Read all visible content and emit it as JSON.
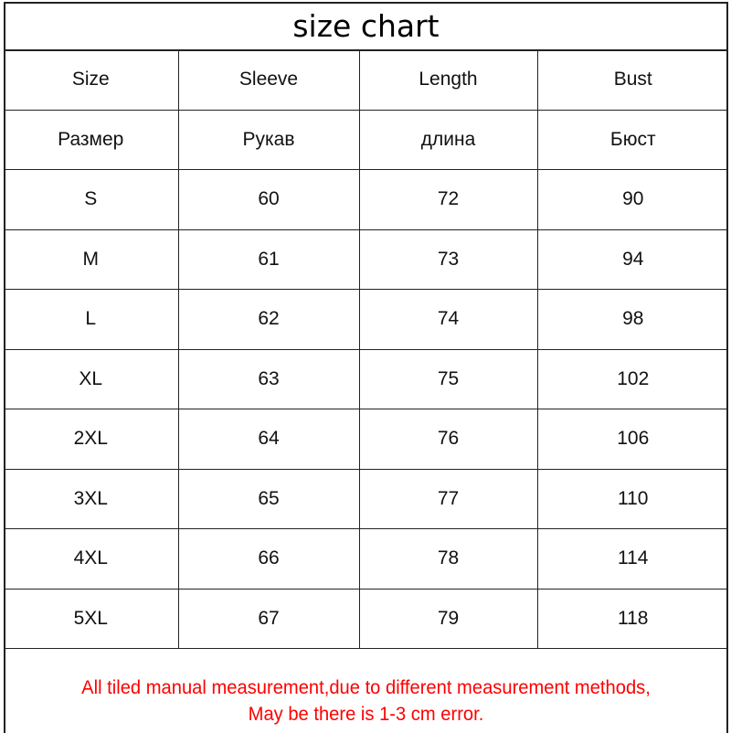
{
  "title": "size chart",
  "header_en": [
    "Size",
    "Sleeve",
    "Length",
    "Bust"
  ],
  "header_ru": [
    "Размер",
    "Рукав",
    "длина",
    "Бюст"
  ],
  "rows": [
    [
      "S",
      "60",
      "72",
      "90"
    ],
    [
      "M",
      "61",
      "73",
      "94"
    ],
    [
      "L",
      "62",
      "74",
      "98"
    ],
    [
      "XL",
      "63",
      "75",
      "102"
    ],
    [
      "2XL",
      "64",
      "76",
      "106"
    ],
    [
      "3XL",
      "65",
      "77",
      "110"
    ],
    [
      "4XL",
      "66",
      "78",
      "114"
    ],
    [
      "5XL",
      "67",
      "79",
      "118"
    ]
  ],
  "note": {
    "line1": "All tiled manual measurement,due to different measurement methods,",
    "line2": "May be there is 1-3 cm error.",
    "color": "#ff0000"
  }
}
